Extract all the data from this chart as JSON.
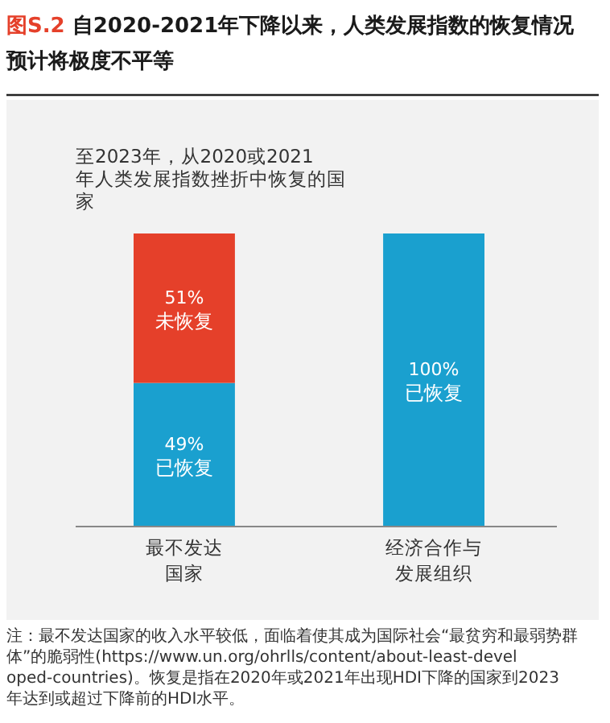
{
  "chart_data": {
    "type": "bar",
    "title": "图S.2 自2020-2021年下降以来，人类发展指数的恢复情况预计将极度不平等",
    "subtitle": "至2023年，从2020或2021年人类发展指数挫折中恢复的国家",
    "categories": [
      "最不发达国家",
      "经济合作与发展组织"
    ],
    "stacked": true,
    "ylim": [
      0,
      100
    ],
    "tick_labels": "x",
    "series": [
      {
        "name": "已恢复",
        "color": "#1aa0cf",
        "values": [
          49,
          100
        ],
        "value_labels": [
          "49%",
          "100%"
        ]
      },
      {
        "name": "未恢复",
        "color": "#e5402a",
        "values": [
          51,
          0
        ],
        "value_labels": [
          "51%",
          null
        ]
      }
    ],
    "annotations": [
      "注：最不发达国家的收入水平较低，面临着使其成为国际社会“最贫穷和最弱势群体”的脆弱性(https://www.un.org/ohrlls/content/about-least-developed-countries)。恢复是指在2020年或2021年出现HDI下降的国家到2023年达到或超过下降前的HDI水平。"
    ]
  }
}
